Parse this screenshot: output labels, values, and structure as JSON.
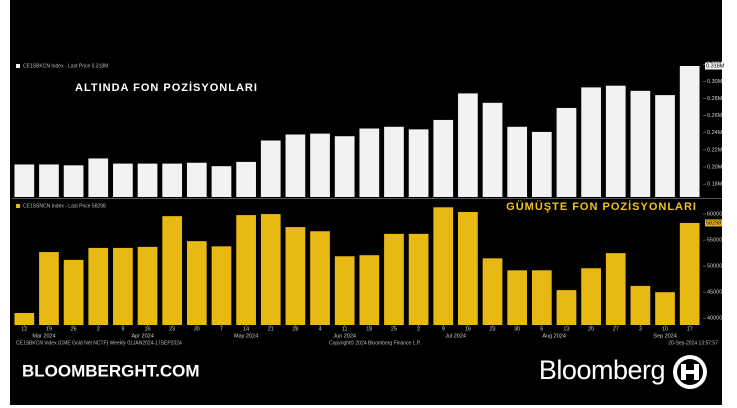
{
  "chart_data": [
    {
      "type": "bar",
      "title": "ALTINDA FON POZİSYONLARI",
      "title_color": "#ffffff",
      "series": [
        {
          "name": "CE1SBKCN Index - Last Price 0.318M",
          "color": "#f2f2f2",
          "values": [
            0.203,
            0.203,
            0.202,
            0.21,
            0.204,
            0.204,
            0.204,
            0.205,
            0.201,
            0.206,
            0.231,
            0.238,
            0.239,
            0.236,
            0.245,
            0.247,
            0.244,
            0.255,
            0.286,
            0.275,
            0.247,
            0.241,
            0.269,
            0.293,
            0.295,
            0.289,
            0.284,
            0.318
          ],
          "value_labels": [
            null,
            null,
            null,
            null,
            null,
            null,
            null,
            null,
            null,
            null,
            null,
            null,
            null,
            null,
            null,
            null,
            null,
            null,
            null,
            null,
            null,
            null,
            null,
            null,
            null,
            null,
            null,
            "0.318M"
          ]
        }
      ],
      "ylim": [
        0.165,
        0.325
      ],
      "yticks": [
        {
          "value": 0.18,
          "label": "0.18M"
        },
        {
          "value": 0.2,
          "label": "0.20M"
        },
        {
          "value": 0.22,
          "label": "0.22M"
        },
        {
          "value": 0.24,
          "label": "0.24M"
        },
        {
          "value": 0.26,
          "label": "0.26M"
        },
        {
          "value": 0.28,
          "label": "0.28M"
        },
        {
          "value": 0.3,
          "label": "0.30M"
        },
        {
          "value": 0.32,
          "label": "0.32M"
        }
      ]
    },
    {
      "type": "bar",
      "title": "GÜMÜŞTE FON POZİSYONLARI",
      "title_color": "#f2c21b",
      "series": [
        {
          "name": "CE1SSNCN Index - Last Price 58298",
          "color": "#e8b913",
          "values": [
            41000,
            52700,
            51200,
            53500,
            53500,
            53700,
            59600,
            54800,
            53800,
            59800,
            60000,
            57500,
            56700,
            51900,
            52100,
            56200,
            56200,
            61300,
            60400,
            51500,
            49200,
            49200,
            45400,
            49600,
            52500,
            46200,
            45000,
            58298
          ]
        }
      ],
      "categories": [
        "12",
        "19",
        "26",
        "2",
        "9",
        "16",
        "23",
        "30",
        "7",
        "14",
        "21",
        "28",
        "4",
        "11",
        "18",
        "25",
        "2",
        "9",
        "16",
        "23",
        "30",
        "6",
        "13",
        "20",
        "27",
        "3",
        "10",
        "17"
      ],
      "months": [
        "Mar 2024",
        "Apr 2024",
        "May 2024",
        "Jun 2024",
        "Jul 2024",
        "Aug 2024",
        "Sep 2024"
      ],
      "ylim": [
        38700,
        62700
      ],
      "yticks": [
        40000,
        45000,
        50000,
        55000,
        60000
      ]
    }
  ],
  "footer": {
    "left": "CE1SBKCN Index (CME Gold Net NCTF) Weekly 01JAN2024-17SEP2024",
    "center": "Copyright© 2024 Bloomberg Finance L.P.",
    "right": "20-Sep-2024 13:57:57"
  },
  "branding": {
    "site": "BLOOMBERGHT.COM",
    "logo": "Bloomberg"
  }
}
